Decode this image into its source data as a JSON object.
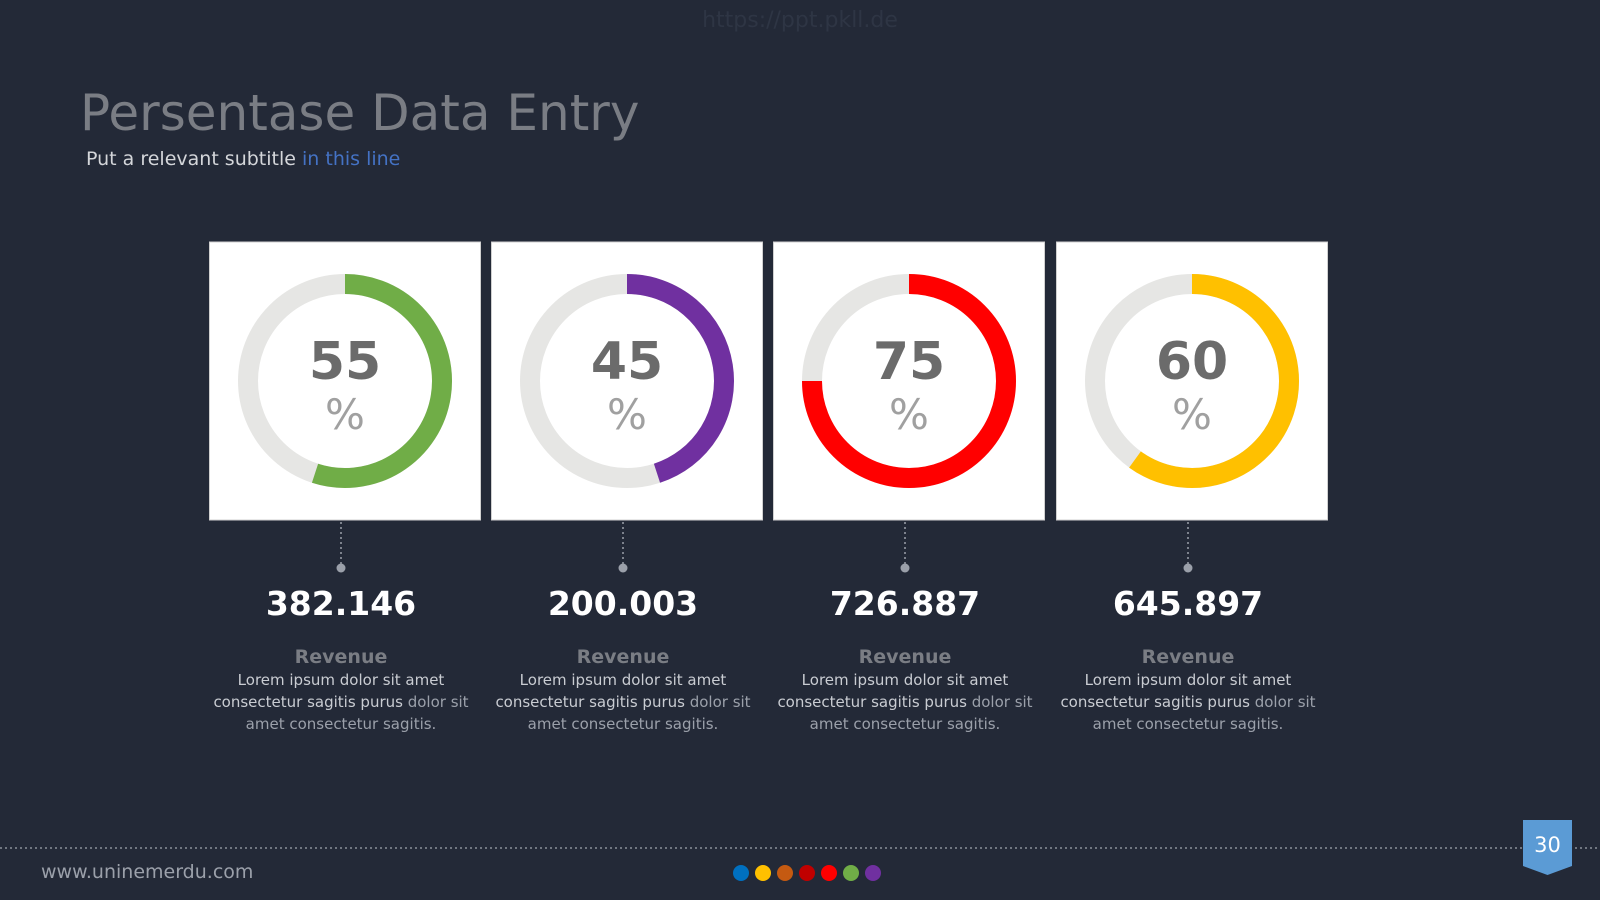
{
  "watermark": "https://ppt.pkll.de",
  "header": {
    "title": "Persentase Data Entry",
    "subtitle": "Put a relevant subtitle",
    "subtitle_highlight": "in this line"
  },
  "cards": [
    {
      "percent": 55,
      "symbol": "%",
      "color": "#70ad47",
      "amount": "382.146",
      "label": "Revenue",
      "text": "Lorem ipsum dolor sit amet consectetur sagitis purus",
      "text_light": "dolor sit amet consectetur sagitis."
    },
    {
      "percent": 45,
      "symbol": "%",
      "color": "#7030a0",
      "amount": "200.003",
      "label": "Revenue",
      "text": "Lorem ipsum dolor sit amet consectetur sagitis purus",
      "text_light": "dolor sit amet consectetur sagitis."
    },
    {
      "percent": 75,
      "symbol": "%",
      "color": "#ff0000",
      "amount": "726.887",
      "label": "Revenue",
      "text": "Lorem ipsum dolor sit amet consectetur sagitis purus",
      "text_light": "dolor sit amet consectetur sagitis."
    },
    {
      "percent": 60,
      "symbol": "%",
      "color": "#ffc000",
      "amount": "645.897",
      "label": "Revenue",
      "text": "Lorem ipsum dolor sit amet consectetur sagitis purus",
      "text_light": "dolor sit amet consectetur sagitis."
    }
  ],
  "footer": {
    "url": "www.uninemerdu.com",
    "page": "30"
  }
}
